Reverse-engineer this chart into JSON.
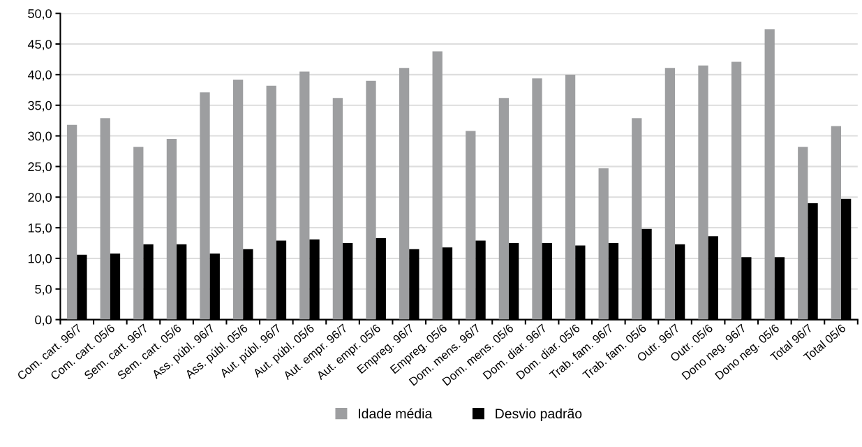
{
  "chart_data": {
    "type": "bar",
    "categories": [
      "Com. cart. 96/7",
      "Com. cart. 05/6",
      "Sem. cart. 96/7",
      "Sem. cart. 05/6",
      "Ass. públ. 96/7",
      "Ass. públ. 05/6",
      "Aut. públ. 96/7",
      "Aut. públ. 05/6",
      "Aut. empr. 96/7",
      "Aut. empr. 05/6",
      "Empreg. 96/7",
      "Empreg. 05/6",
      "Dom. mens. 96/7",
      "Dom. mens. 05/6",
      "Dom. diar. 96/7",
      "Dom. diar. 05/6",
      "Trab. fam. 96/7",
      "Trab. fam. 05/6",
      "Outr. 96/7",
      "Outr. 05/6",
      "Dono neg. 96/7",
      "Dono neg. 05/6",
      "Total 96/7",
      "Total 05/6"
    ],
    "series": [
      {
        "name": "Idade média",
        "color": "#9d9ea0",
        "values": [
          31.8,
          32.9,
          28.2,
          29.5,
          37.1,
          39.2,
          38.2,
          40.5,
          36.2,
          39.0,
          41.1,
          43.8,
          30.8,
          36.2,
          39.4,
          40.0,
          24.7,
          32.9,
          41.1,
          41.5,
          42.1,
          47.4,
          28.2,
          31.6
        ]
      },
      {
        "name": "Desvio padrão",
        "color": "#000000",
        "values": [
          10.6,
          10.8,
          12.3,
          12.3,
          10.8,
          11.5,
          12.9,
          13.1,
          12.5,
          13.3,
          11.5,
          11.8,
          12.9,
          12.5,
          12.5,
          12.1,
          12.5,
          14.8,
          12.3,
          13.6,
          10.2,
          10.2,
          19.0,
          19.7
        ]
      }
    ],
    "ylim": [
      0,
      50
    ],
    "yticks": [
      {
        "value": 0,
        "label": "0,0"
      },
      {
        "value": 5,
        "label": "5,0"
      },
      {
        "value": 10,
        "label": "10,0"
      },
      {
        "value": 15,
        "label": "15,0"
      },
      {
        "value": 20,
        "label": "20,0"
      },
      {
        "value": 25,
        "label": "25,0"
      },
      {
        "value": 30,
        "label": "30,0"
      },
      {
        "value": 35,
        "label": "35,0"
      },
      {
        "value": 40,
        "label": "40,0"
      },
      {
        "value": 45,
        "label": "45,0"
      },
      {
        "value": 50,
        "label": "50,0"
      }
    ],
    "grid": "y",
    "legend": "bottom"
  }
}
